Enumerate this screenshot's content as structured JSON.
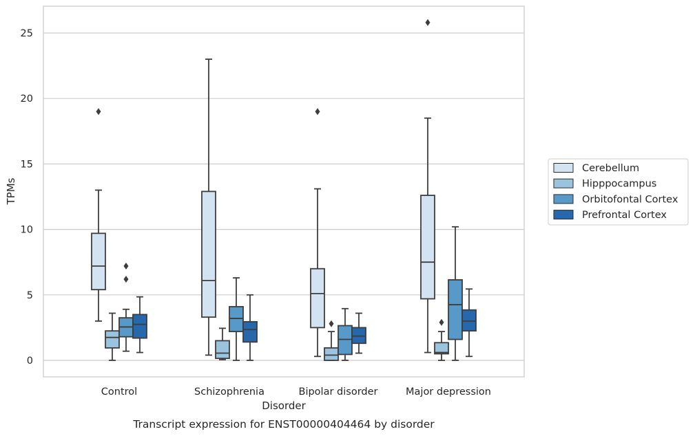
{
  "chart_data": {
    "type": "box",
    "title": "",
    "caption": "Transcript expression for ENST00000404464 by disorder",
    "xlabel": "Disorder",
    "ylabel": "TPMs",
    "ylim": [
      -1.3,
      27.1
    ],
    "yticks": [
      0,
      5,
      10,
      15,
      20,
      25
    ],
    "grid": "horizontal",
    "legend_position": "right",
    "categories": [
      "Control",
      "Schizophrenia",
      "Bipolar disorder",
      "Major depression"
    ],
    "series": [
      {
        "name": "Cerebellum",
        "color": "#d4e3f1",
        "boxes": [
          {
            "whislo": 3.0,
            "q1": 5.4,
            "med": 7.2,
            "q3": 9.7,
            "whishi": 13.0,
            "fliers": [
              19.0
            ]
          },
          {
            "whislo": 0.4,
            "q1": 3.3,
            "med": 6.1,
            "q3": 12.9,
            "whishi": 23.0,
            "fliers": []
          },
          {
            "whislo": 0.3,
            "q1": 2.5,
            "med": 5.1,
            "q3": 7.0,
            "whishi": 13.1,
            "fliers": [
              19.0
            ]
          },
          {
            "whislo": 0.6,
            "q1": 4.7,
            "med": 7.5,
            "q3": 12.6,
            "whishi": 18.5,
            "fliers": [
              25.8
            ]
          }
        ]
      },
      {
        "name": "Hipppocampus",
        "color": "#9ac3de",
        "boxes": [
          {
            "whislo": 0.0,
            "q1": 0.95,
            "med": 1.75,
            "q3": 2.25,
            "whishi": 3.6,
            "fliers": []
          },
          {
            "whislo": 0.05,
            "q1": 0.15,
            "med": 0.55,
            "q3": 1.5,
            "whishi": 2.45,
            "fliers": []
          },
          {
            "whislo": 0.0,
            "q1": 0.0,
            "med": 0.4,
            "q3": 0.95,
            "whishi": 2.2,
            "fliers": [
              2.8
            ]
          },
          {
            "whislo": 0.0,
            "q1": 0.5,
            "med": 0.6,
            "q3": 1.35,
            "whishi": 2.2,
            "fliers": [
              2.9
            ]
          }
        ]
      },
      {
        "name": "Orbitofontal Cortex",
        "color": "#5799c9",
        "boxes": [
          {
            "whislo": 0.7,
            "q1": 1.8,
            "med": 2.55,
            "q3": 3.25,
            "whishi": 3.9,
            "fliers": [
              6.2,
              7.2
            ]
          },
          {
            "whislo": 0.0,
            "q1": 2.2,
            "med": 3.2,
            "q3": 4.1,
            "whishi": 6.3,
            "fliers": []
          },
          {
            "whislo": 0.0,
            "q1": 0.45,
            "med": 1.6,
            "q3": 2.65,
            "whishi": 3.95,
            "fliers": []
          },
          {
            "whislo": 0.0,
            "q1": 1.6,
            "med": 4.25,
            "q3": 6.15,
            "whishi": 10.2,
            "fliers": []
          }
        ]
      },
      {
        "name": "Prefrontal Cortex",
        "color": "#2767ab",
        "boxes": [
          {
            "whislo": 0.6,
            "q1": 1.7,
            "med": 2.75,
            "q3": 3.5,
            "whishi": 4.85,
            "fliers": []
          },
          {
            "whislo": 0.0,
            "q1": 1.4,
            "med": 2.35,
            "q3": 2.95,
            "whishi": 5.0,
            "fliers": []
          },
          {
            "whislo": 0.55,
            "q1": 1.3,
            "med": 1.85,
            "q3": 2.5,
            "whishi": 3.6,
            "fliers": []
          },
          {
            "whislo": 0.3,
            "q1": 2.25,
            "med": 3.0,
            "q3": 3.85,
            "whishi": 5.45,
            "fliers": []
          }
        ]
      }
    ]
  }
}
